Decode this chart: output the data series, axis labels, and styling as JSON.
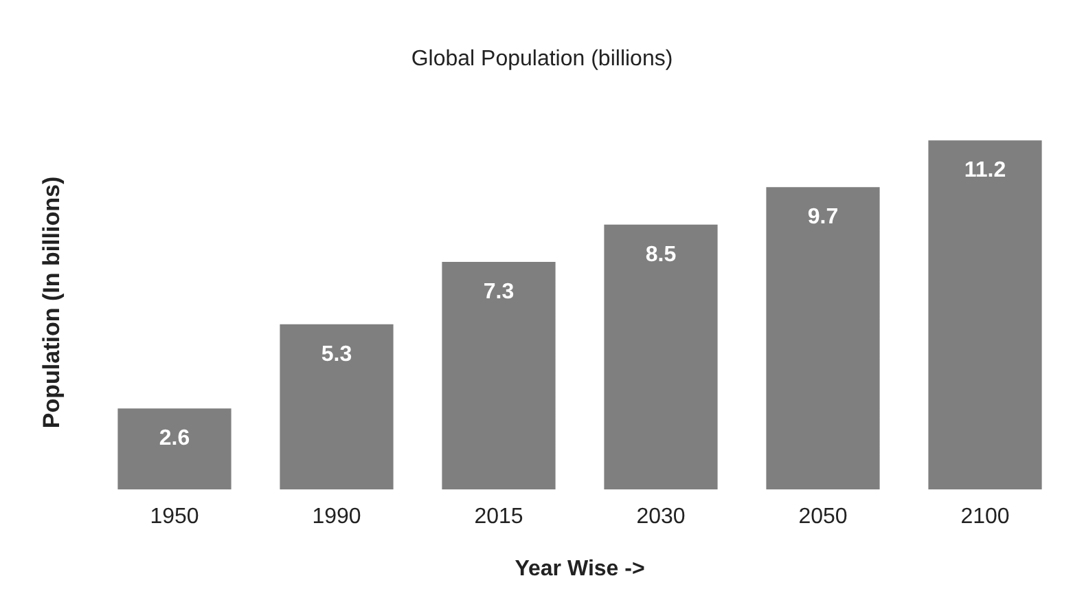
{
  "chart_data": {
    "type": "bar",
    "title": "Global Population (billions)",
    "xlabel": "Year Wise ->",
    "ylabel": "Population (In billions)",
    "categories": [
      "1950",
      "1990",
      "2015",
      "2030",
      "2050",
      "2100"
    ],
    "values": [
      2.6,
      5.3,
      7.3,
      8.5,
      9.7,
      11.2
    ],
    "color": "#7f7f7f",
    "data_labels": true
  }
}
